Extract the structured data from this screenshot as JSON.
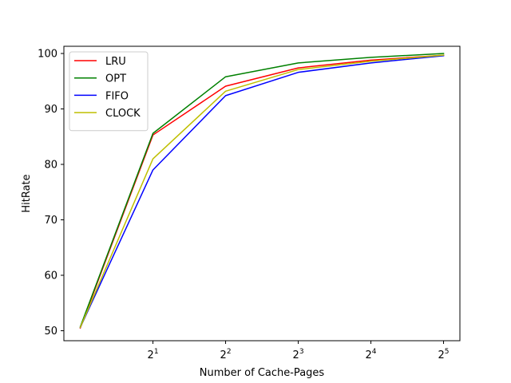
{
  "chart_data": {
    "type": "line",
    "xlabel": "Number of Cache-Pages",
    "ylabel": "HitRate",
    "x_scale": "log2",
    "x": [
      1,
      2,
      4,
      8,
      16,
      32
    ],
    "x_ticks": [
      2,
      4,
      8,
      16,
      32
    ],
    "x_tick_labels": [
      {
        "base": "2",
        "exp": "1"
      },
      {
        "base": "2",
        "exp": "2"
      },
      {
        "base": "2",
        "exp": "3"
      },
      {
        "base": "2",
        "exp": "4"
      },
      {
        "base": "2",
        "exp": "5"
      }
    ],
    "y_ticks": [
      50,
      60,
      70,
      80,
      90,
      100
    ],
    "ylim": [
      48.2,
      101.3
    ],
    "xlim": [
      0.855,
      37.4
    ],
    "grid": false,
    "legend_position": "upper-left",
    "series": [
      {
        "name": "LRU",
        "color": "#ff0000",
        "values": [
          50.5,
          85.3,
          94.1,
          97.4,
          98.8,
          99.7
        ]
      },
      {
        "name": "OPT",
        "color": "#008000",
        "values": [
          50.7,
          85.6,
          95.8,
          98.3,
          99.3,
          100.0
        ]
      },
      {
        "name": "FIFO",
        "color": "#0000ff",
        "values": [
          50.6,
          79.0,
          92.4,
          96.6,
          98.3,
          99.6
        ]
      },
      {
        "name": "CLOCK",
        "color": "#bfbf00",
        "values": [
          50.6,
          81.0,
          93.2,
          97.1,
          98.6,
          99.7
        ]
      }
    ]
  }
}
